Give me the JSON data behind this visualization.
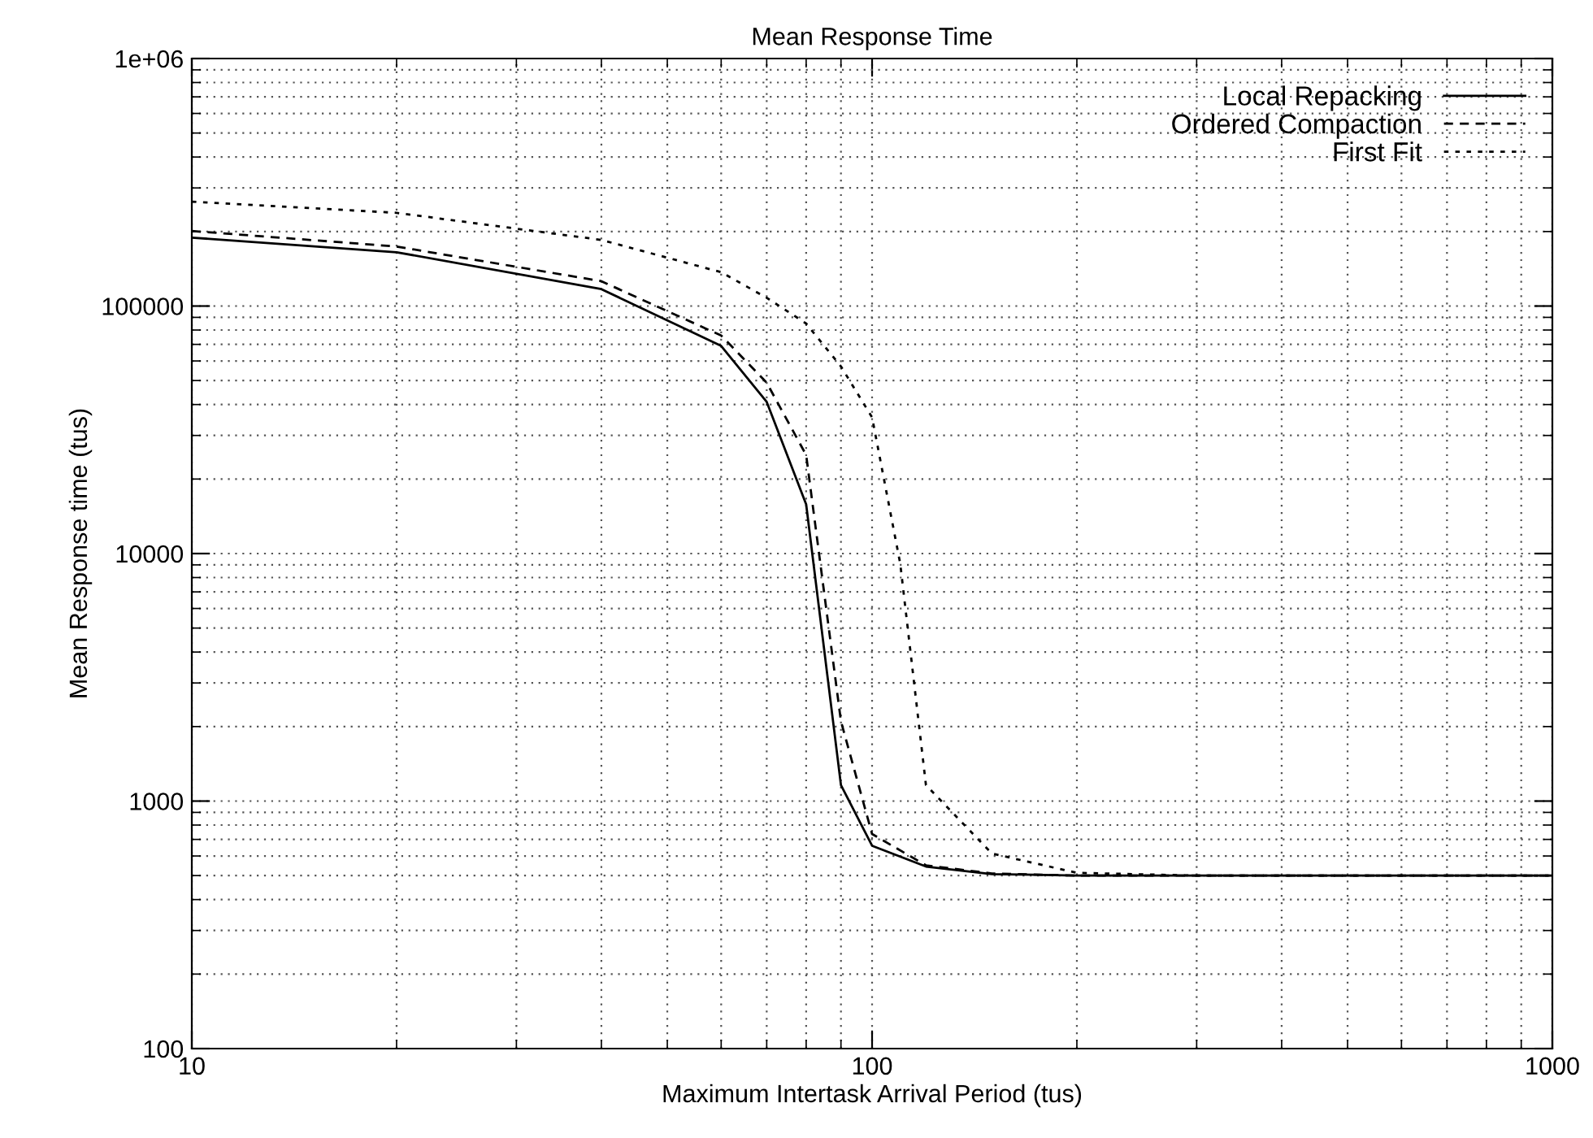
{
  "chart_data": {
    "type": "line",
    "title": "Mean Response Time",
    "xlabel": "Maximum Intertask Arrival Period (tus)",
    "ylabel": "Mean Response time (tus)",
    "log": "xy",
    "xlim": [
      10,
      1000
    ],
    "ylim": [
      100,
      1000000
    ],
    "xticks": [
      10,
      100,
      1000
    ],
    "yticks": [
      100,
      1000,
      10000,
      100000,
      {
        "value": 1000000,
        "label": "1e+06"
      }
    ],
    "grid": true,
    "legend": "top right",
    "marker": "none",
    "series": [
      {
        "name": "Local Repacking",
        "color": "#000000",
        "line_style": "solid",
        "x": [
          10,
          20,
          40,
          60,
          70,
          80,
          90,
          100,
          120,
          150,
          200,
          300,
          500,
          1000
        ],
        "values": [
          189000,
          165000,
          117000,
          69000,
          41000,
          15800,
          1160,
          660,
          544,
          507,
          500,
          500,
          500,
          500
        ]
      },
      {
        "name": "Ordered Compaction",
        "color": "#000000",
        "line_style": "dashed",
        "x": [
          10,
          20,
          40,
          60,
          70,
          80,
          90,
          100,
          120,
          150,
          200,
          300,
          500,
          1000
        ],
        "values": [
          201000,
          174000,
          126000,
          76000,
          49000,
          25000,
          2100,
          736,
          550,
          510,
          500,
          500,
          500,
          500
        ]
      },
      {
        "name": "First Fit",
        "color": "#000000",
        "line_style": "dotted",
        "x": [
          10,
          20,
          40,
          60,
          70,
          80,
          90,
          100,
          110,
          120,
          150,
          200,
          300,
          500,
          1000
        ],
        "values": [
          264000,
          238000,
          185000,
          137000,
          108000,
          85000,
          57000,
          35500,
          9100,
          1160,
          614,
          513,
          500,
          500,
          500
        ]
      }
    ]
  }
}
